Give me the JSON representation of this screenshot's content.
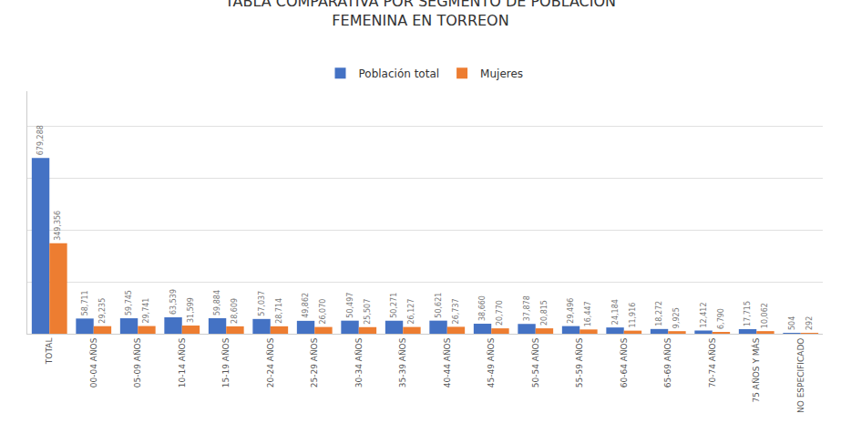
{
  "chart_data": {
    "type": "bar",
    "title": "TABLA COMPARATIVA POR SEGMENTO DE POBLACIÓN\nFEMENINA EN TORREON",
    "categories": [
      "TOTAL",
      "00-04 AÑOS",
      "05-09 AÑOS",
      "10-14 AÑOS",
      "15-19 AÑOS",
      "20-24 AÑOS",
      "25-29 AÑOS",
      "30-34 AÑOS",
      "35-39 AÑOS",
      "40-44 AÑOS",
      "45-49 AÑOS",
      "50-54 AÑOS",
      "55-59 AÑOS",
      "60-64 AÑOS",
      "65-69 AÑOS",
      "70-74 AÑOS",
      "75 AÑOS Y MÁS",
      "NO ESPECIFICADO"
    ],
    "series": [
      {
        "name": "Población total",
        "color": "#4472C4",
        "values": [
          679288,
          58711,
          59745,
          63539,
          59884,
          57037,
          49862,
          50497,
          50271,
          50621,
          38660,
          37878,
          29496,
          24184,
          18272,
          12412,
          17715,
          504
        ],
        "value_labels": [
          "679,288",
          "58,711",
          "59,745",
          "63,539",
          "59,884",
          "57,037",
          "49,862",
          "50,497",
          "50,271",
          "50,621",
          "38,660",
          "37,878",
          "29,496",
          "24,184",
          "18,272",
          "12,412",
          "17,715",
          "504"
        ]
      },
      {
        "name": "Mujeres",
        "color": "#ED7D31",
        "values": [
          349356,
          29235,
          29741,
          31599,
          28609,
          28714,
          26070,
          25507,
          26127,
          26737,
          20770,
          20815,
          16447,
          11916,
          9925,
          6790,
          10062,
          292
        ],
        "value_labels": [
          "349,356",
          "29,235",
          "29,741",
          "31,599",
          "28,609",
          "28,714",
          "26,070",
          "25,507",
          "26,127",
          "26,737",
          "20,770",
          "20,815",
          "16,447",
          "11,916",
          "9,925",
          "6,790",
          "10,062",
          "292"
        ]
      }
    ],
    "ylim": [
      0,
      937417.44
    ],
    "yticks": [
      0,
      200000,
      400000,
      600000,
      800000
    ],
    "grid": true,
    "legend": "top",
    "data_labels": true,
    "tick_labels": "x"
  }
}
